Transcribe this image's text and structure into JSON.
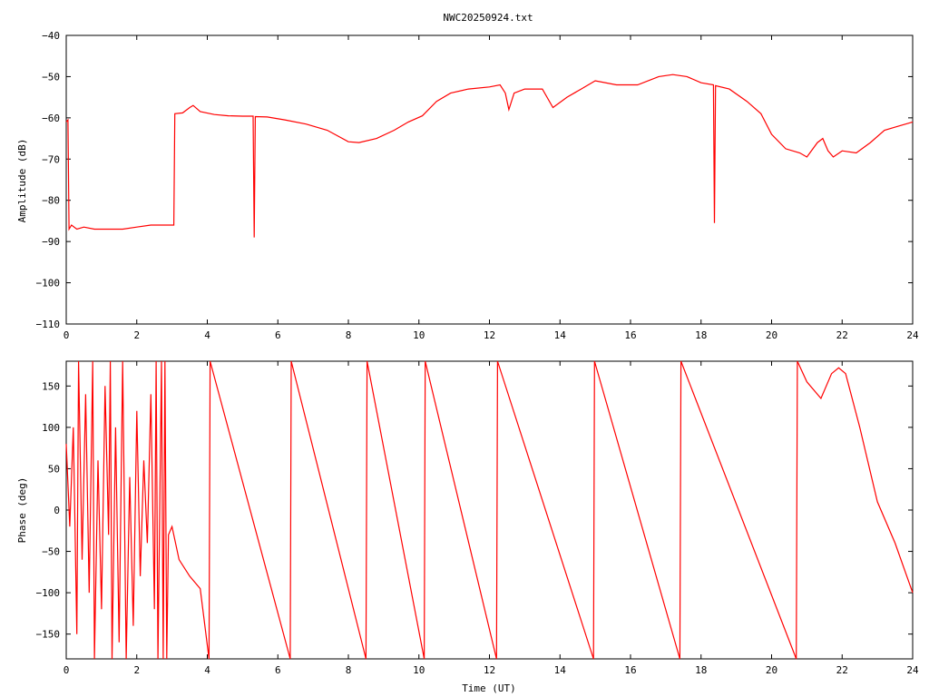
{
  "chart_data": [
    {
      "type": "line",
      "title": "NWC20250924.txt",
      "xlabel": "",
      "ylabel": "Amplitude (dB)",
      "xlim": [
        0,
        24
      ],
      "ylim": [
        -110,
        -40
      ],
      "x_ticks": [
        "0",
        "2",
        "4",
        "6",
        "8",
        "10",
        "12",
        "14",
        "16",
        "18",
        "20",
        "22",
        "24"
      ],
      "y_ticks": [
        "-40",
        "-50",
        "-60",
        "-70",
        "-80",
        "-90",
        "-100",
        "-110"
      ],
      "grid": false,
      "line_color": "#ff0000",
      "series": [
        {
          "points": [
            [
              0.0,
              -61
            ],
            [
              0.05,
              -60.5
            ],
            [
              0.08,
              -87
            ],
            [
              0.15,
              -86
            ],
            [
              0.3,
              -87
            ],
            [
              0.5,
              -86.5
            ],
            [
              0.8,
              -87
            ],
            [
              1.2,
              -87
            ],
            [
              1.6,
              -87
            ],
            [
              2.0,
              -86.5
            ],
            [
              2.4,
              -86
            ],
            [
              2.8,
              -86
            ],
            [
              3.05,
              -86
            ],
            [
              3.08,
              -59
            ],
            [
              3.3,
              -58.8
            ],
            [
              3.5,
              -57.5
            ],
            [
              3.6,
              -57
            ],
            [
              3.8,
              -58.5
            ],
            [
              4.2,
              -59.2
            ],
            [
              4.6,
              -59.5
            ],
            [
              5.0,
              -59.6
            ],
            [
              5.3,
              -59.6
            ],
            [
              5.33,
              -89
            ],
            [
              5.36,
              -59.7
            ],
            [
              5.7,
              -59.8
            ],
            [
              6.2,
              -60.5
            ],
            [
              6.8,
              -61.5
            ],
            [
              7.4,
              -63
            ],
            [
              8.0,
              -65.8
            ],
            [
              8.3,
              -66
            ],
            [
              8.8,
              -65
            ],
            [
              9.3,
              -63
            ],
            [
              9.7,
              -61
            ],
            [
              10.1,
              -59.5
            ],
            [
              10.5,
              -56
            ],
            [
              10.9,
              -54
            ],
            [
              11.4,
              -53
            ],
            [
              12.0,
              -52.5
            ],
            [
              12.3,
              -52
            ],
            [
              12.45,
              -54
            ],
            [
              12.55,
              -58
            ],
            [
              12.7,
              -54
            ],
            [
              13.0,
              -53
            ],
            [
              13.5,
              -53
            ],
            [
              13.8,
              -57.5
            ],
            [
              14.2,
              -55
            ],
            [
              14.6,
              -53
            ],
            [
              15.0,
              -51
            ],
            [
              15.6,
              -52
            ],
            [
              16.2,
              -52
            ],
            [
              16.8,
              -50
            ],
            [
              17.2,
              -49.5
            ],
            [
              17.6,
              -50
            ],
            [
              18.0,
              -51.5
            ],
            [
              18.35,
              -52
            ],
            [
              18.38,
              -85.5
            ],
            [
              18.41,
              -52.2
            ],
            [
              18.8,
              -53
            ],
            [
              19.3,
              -56
            ],
            [
              19.7,
              -59
            ],
            [
              20.0,
              -64
            ],
            [
              20.4,
              -67.5
            ],
            [
              20.8,
              -68.5
            ],
            [
              21.0,
              -69.5
            ],
            [
              21.3,
              -66
            ],
            [
              21.45,
              -65
            ],
            [
              21.6,
              -68
            ],
            [
              21.75,
              -69.5
            ],
            [
              22.0,
              -68
            ],
            [
              22.4,
              -68.5
            ],
            [
              22.8,
              -66
            ],
            [
              23.2,
              -63
            ],
            [
              23.6,
              -62
            ],
            [
              24.0,
              -61
            ]
          ]
        }
      ]
    },
    {
      "type": "line",
      "title": "",
      "xlabel": "Time (UT)",
      "ylabel": "Phase (deg)",
      "xlim": [
        0,
        24
      ],
      "ylim": [
        -180,
        180
      ],
      "x_ticks": [
        "0",
        "2",
        "4",
        "6",
        "8",
        "10",
        "12",
        "14",
        "16",
        "18",
        "20",
        "22",
        "24"
      ],
      "y_ticks": [
        "150",
        "100",
        "50",
        "0",
        "-50",
        "-100",
        "-150"
      ],
      "grid": false,
      "line_color": "#ff0000",
      "series": [
        {
          "points": [
            [
              0.0,
              80
            ],
            [
              0.1,
              -20
            ],
            [
              0.2,
              100
            ],
            [
              0.3,
              -150
            ],
            [
              0.35,
              180
            ],
            [
              0.45,
              -60
            ],
            [
              0.55,
              140
            ],
            [
              0.65,
              -100
            ],
            [
              0.75,
              180
            ],
            [
              0.8,
              -180
            ],
            [
              0.9,
              60
            ],
            [
              1.0,
              -120
            ],
            [
              1.1,
              150
            ],
            [
              1.2,
              -30
            ],
            [
              1.25,
              180
            ],
            [
              1.3,
              -180
            ],
            [
              1.4,
              100
            ],
            [
              1.5,
              -160
            ],
            [
              1.6,
              180
            ],
            [
              1.7,
              -180
            ],
            [
              1.8,
              40
            ],
            [
              1.9,
              -140
            ],
            [
              2.0,
              120
            ],
            [
              2.1,
              -80
            ],
            [
              2.2,
              60
            ],
            [
              2.3,
              -40
            ],
            [
              2.4,
              140
            ],
            [
              2.5,
              -120
            ],
            [
              2.55,
              180
            ],
            [
              2.6,
              -180
            ],
            [
              2.7,
              180
            ],
            [
              2.75,
              -180
            ],
            [
              2.8,
              180
            ],
            [
              2.85,
              -180
            ],
            [
              2.9,
              -30
            ],
            [
              3.0,
              -20
            ],
            [
              3.2,
              -60
            ],
            [
              3.5,
              -80
            ],
            [
              3.8,
              -95
            ],
            [
              4.05,
              -180
            ],
            [
              4.08,
              180
            ],
            [
              6.35,
              -180
            ],
            [
              6.38,
              180
            ],
            [
              8.5,
              -180
            ],
            [
              8.53,
              180
            ],
            [
              10.15,
              -180
            ],
            [
              10.18,
              180
            ],
            [
              12.2,
              -180
            ],
            [
              12.23,
              180
            ],
            [
              14.95,
              -180
            ],
            [
              14.98,
              180
            ],
            [
              17.4,
              -180
            ],
            [
              17.43,
              180
            ],
            [
              20.7,
              -180
            ],
            [
              20.73,
              180
            ],
            [
              21.0,
              155
            ],
            [
              21.4,
              135
            ],
            [
              21.7,
              165
            ],
            [
              21.9,
              172
            ],
            [
              22.1,
              165
            ],
            [
              22.5,
              100
            ],
            [
              23.0,
              10
            ],
            [
              23.5,
              -40
            ],
            [
              24.0,
              -100
            ]
          ]
        }
      ]
    }
  ]
}
